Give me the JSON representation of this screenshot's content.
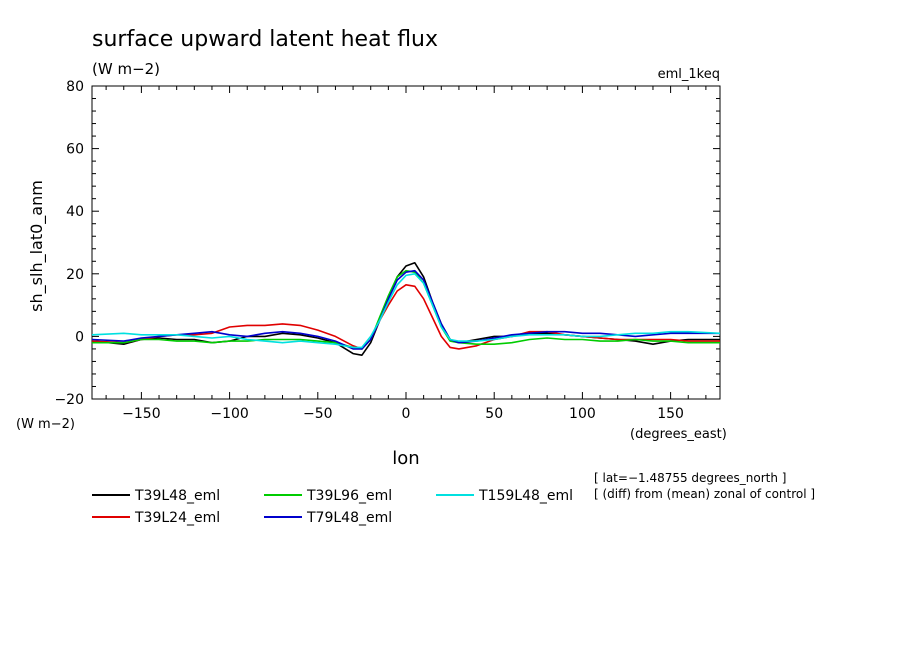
{
  "title": "surface upward latent heat flux",
  "units_label": "(W m−2)",
  "experiment": "eml_1keq",
  "ylabel": "sh_slh_lat0_anm",
  "y_units": "(W m−2)",
  "xlabel": "lon",
  "x_units": "(degrees_east)",
  "notes": [
    "[ lat=−1.48755 degrees_north ]",
    "[ (diff) from (mean) zonal of control ]"
  ],
  "colors": {
    "T39L48_eml": "#000000",
    "T39L24_eml": "#e00000",
    "T39L96_eml": "#00cc00",
    "T79L48_eml": "#0000cc",
    "T159L48_eml": "#00e0e0"
  },
  "chart_data": {
    "type": "line",
    "title": "surface upward latent heat flux",
    "xlabel": "lon",
    "ylabel": "sh_slh_lat0_anm",
    "xlim": [
      -178,
      178
    ],
    "ylim": [
      -20,
      80
    ],
    "x_ticks": [
      -150,
      -100,
      -50,
      0,
      50,
      100,
      150
    ],
    "x_tick_labels": [
      "−150",
      "−100",
      "−50",
      "0",
      "50",
      "100",
      "150"
    ],
    "y_ticks": [
      -20,
      0,
      20,
      40,
      60,
      80
    ],
    "y_tick_labels": [
      "−20",
      "0",
      "20",
      "40",
      "60",
      "80"
    ],
    "grid": false,
    "legend": "bottom",
    "x": [
      -178,
      -160,
      -150,
      -140,
      -130,
      -120,
      -110,
      -100,
      -90,
      -80,
      -70,
      -60,
      -50,
      -40,
      -30,
      -25,
      -20,
      -15,
      -10,
      -5,
      0,
      5,
      10,
      15,
      20,
      25,
      30,
      40,
      50,
      60,
      70,
      80,
      90,
      100,
      110,
      120,
      130,
      140,
      150,
      160,
      178
    ],
    "series": [
      {
        "name": "T39L48_eml",
        "values": [
          -1.5,
          -2.5,
          -1,
          -0.5,
          -1,
          -1,
          -2,
          -1.5,
          0,
          0,
          1,
          0.5,
          -0.5,
          -2,
          -5.5,
          -6,
          -2,
          5,
          12,
          19,
          22.5,
          23.5,
          19,
          11,
          4,
          -1,
          -2,
          -1,
          0,
          0,
          1,
          1,
          0.5,
          0,
          -0.5,
          -1,
          -1.5,
          -2.5,
          -1.5,
          -1,
          -1
        ]
      },
      {
        "name": "T39L24_eml",
        "values": [
          -1.5,
          -2,
          -1,
          0,
          0.5,
          0.5,
          1,
          3,
          3.5,
          3.5,
          4,
          3.5,
          2,
          0,
          -3,
          -4,
          -1,
          5,
          10,
          14.5,
          16.5,
          16,
          12,
          6,
          0,
          -3.5,
          -4,
          -3,
          -1,
          0,
          1.5,
          1.5,
          0.5,
          0,
          -0.5,
          -1,
          -1,
          -1,
          -1,
          -1.5,
          -1.5
        ]
      },
      {
        "name": "T39L96_eml",
        "values": [
          -2,
          -2,
          -1,
          -1,
          -1.5,
          -1.5,
          -2,
          -1.5,
          -1.5,
          -1,
          -1,
          -1,
          -1.5,
          -2,
          -3.5,
          -4,
          -1,
          6,
          13,
          19,
          21,
          20.5,
          17,
          10,
          3,
          -1.5,
          -2,
          -2.5,
          -2.5,
          -2,
          -1,
          -0.5,
          -1,
          -1,
          -1.5,
          -1.5,
          -1,
          -1.5,
          -1.5,
          -2,
          -2
        ]
      },
      {
        "name": "T79L48_eml",
        "values": [
          -1,
          -1.5,
          -0.5,
          0,
          0.5,
          1,
          1.5,
          0.5,
          0,
          1,
          1.5,
          1,
          0,
          -1.5,
          -4,
          -4,
          -1,
          5,
          12,
          18,
          20.5,
          21,
          18,
          11,
          4,
          -1,
          -2,
          -1.5,
          -0.5,
          0.5,
          1,
          1.5,
          1.5,
          1,
          1,
          0.5,
          0,
          0.5,
          1,
          1,
          1
        ]
      },
      {
        "name": "T159L48_eml",
        "values": [
          0.5,
          1,
          0.5,
          0.5,
          0.5,
          0,
          -0.5,
          0,
          -1,
          -1.5,
          -2,
          -1.5,
          -2,
          -2.5,
          -3.5,
          -3.5,
          0,
          5,
          11,
          16.5,
          19.5,
          20,
          17,
          10,
          3,
          -1,
          -1.5,
          -1.5,
          -1,
          0,
          0.5,
          0.5,
          0.5,
          0,
          0,
          0.5,
          1,
          1,
          1.5,
          1.5,
          1
        ]
      }
    ]
  }
}
